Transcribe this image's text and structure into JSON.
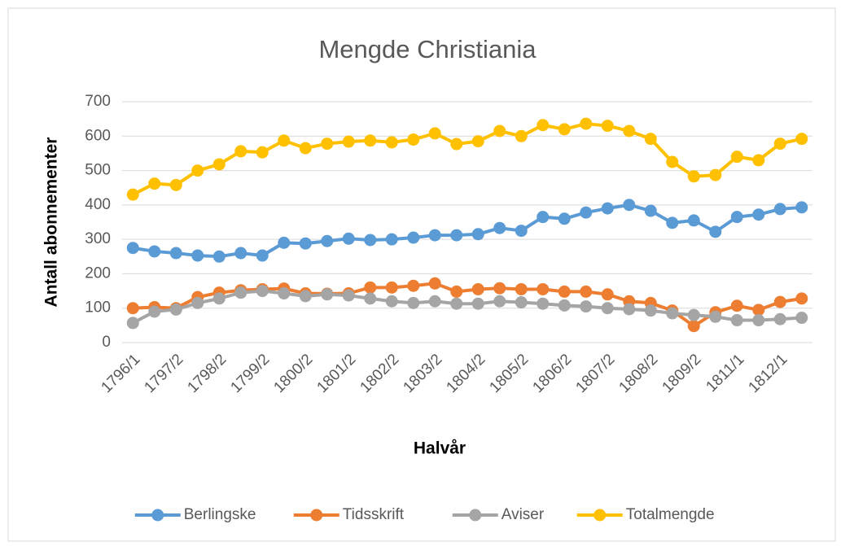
{
  "chart_data": {
    "type": "line",
    "title": "Mengde Christiania",
    "x_label": "Halvår",
    "y_label": "Antall abonnementer",
    "categories": [
      "1796/1",
      null,
      "1797/2",
      null,
      "1798/2",
      null,
      "1799/2",
      null,
      "1800/2",
      null,
      "1801/2",
      null,
      "1802/2",
      null,
      "1803/2",
      null,
      "1804/2",
      null,
      "1805/2",
      null,
      "1806/2",
      null,
      "1807/2",
      null,
      "1808/2",
      null,
      "1809/2",
      null,
      "1811/1",
      null,
      "1812/1",
      null
    ],
    "series": [
      {
        "name": "Berlingske",
        "color": "#5b9bd5",
        "values": [
          275,
          265,
          260,
          253,
          250,
          260,
          253,
          290,
          288,
          295,
          302,
          298,
          300,
          305,
          312,
          312,
          315,
          333,
          325,
          365,
          360,
          378,
          390,
          400,
          383,
          348,
          355,
          322,
          365,
          372,
          388,
          393
        ]
      },
      {
        "name": "Tidsskrift",
        "color": "#ed7d31",
        "values": [
          100,
          103,
          100,
          132,
          145,
          152,
          155,
          157,
          143,
          142,
          143,
          160,
          160,
          165,
          172,
          148,
          155,
          158,
          155,
          155,
          148,
          148,
          140,
          120,
          115,
          93,
          48,
          88,
          107,
          95,
          118,
          128
        ]
      },
      {
        "name": "Aviser",
        "color": "#a5a5a5",
        "values": [
          57,
          90,
          96,
          115,
          128,
          145,
          150,
          143,
          135,
          140,
          137,
          128,
          120,
          115,
          120,
          113,
          113,
          120,
          117,
          113,
          108,
          105,
          100,
          97,
          93,
          85,
          80,
          75,
          65,
          65,
          68,
          72
        ]
      },
      {
        "name": "Totalmengde",
        "color": "#ffc000",
        "values": [
          430,
          462,
          458,
          500,
          518,
          556,
          553,
          587,
          565,
          578,
          584,
          587,
          582,
          590,
          608,
          577,
          585,
          615,
          600,
          632,
          620,
          636,
          630,
          615,
          592,
          525,
          483,
          487,
          540,
          530,
          578,
          592
        ]
      }
    ],
    "ylim": [
      0,
      700
    ],
    "yticks": [
      0,
      100,
      200,
      300,
      400,
      500,
      600,
      700
    ],
    "grid": true,
    "legend": "bottom"
  }
}
